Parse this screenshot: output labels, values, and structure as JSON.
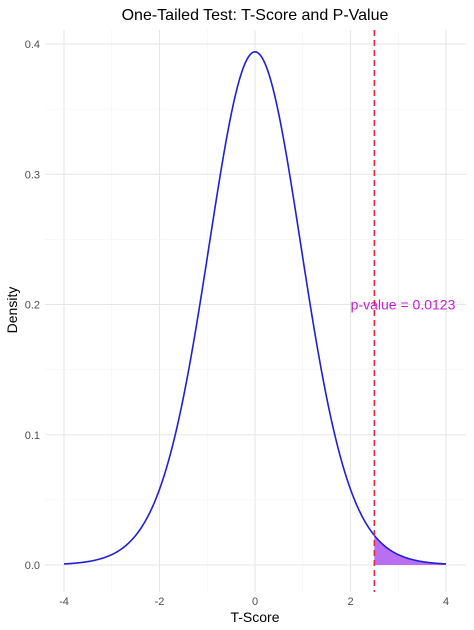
{
  "chart_data": {
    "type": "line",
    "title": "One-Tailed Test: T-Score and P-Value",
    "xlabel": "T-Score",
    "ylabel": "Density",
    "xlim": [
      -4,
      4
    ],
    "ylim": [
      0,
      0.4
    ],
    "x_ticks": [
      -4,
      -2,
      0,
      2,
      4
    ],
    "y_ticks": [
      0.0,
      0.1,
      0.2,
      0.3,
      0.4
    ],
    "x_tick_labels": [
      "-4",
      "-2",
      "0",
      "2",
      "4"
    ],
    "y_tick_labels": [
      "0.0",
      "0.1",
      "0.2",
      "0.3",
      "0.4"
    ],
    "grid": true,
    "legend": "none",
    "series": [
      {
        "curve": "t-distribution density",
        "df": 20,
        "color": "#1f1fd6",
        "x": [
          -4,
          -3.5,
          -3,
          -2.5,
          -2,
          -1.5,
          -1,
          -0.5,
          0,
          0.5,
          1,
          1.5,
          2,
          2.5,
          3,
          3.5,
          4
        ],
        "y": [
          0.0009,
          0.0023,
          0.0066,
          0.018,
          0.0581,
          0.1279,
          0.236,
          0.3494,
          0.394,
          0.3494,
          0.236,
          0.1279,
          0.0581,
          0.018,
          0.0066,
          0.0023,
          0.0009
        ]
      }
    ],
    "shaded_region": {
      "x_from": 2.5,
      "x_to": 4,
      "color": "#b86ff2"
    },
    "critical_line": {
      "x": 2.5,
      "color": "#e0283e",
      "style": "dashed"
    },
    "annotation": {
      "text": "p-value = 0.0123",
      "x": 3.1,
      "y": 0.2,
      "color": "#c41ed4"
    }
  }
}
